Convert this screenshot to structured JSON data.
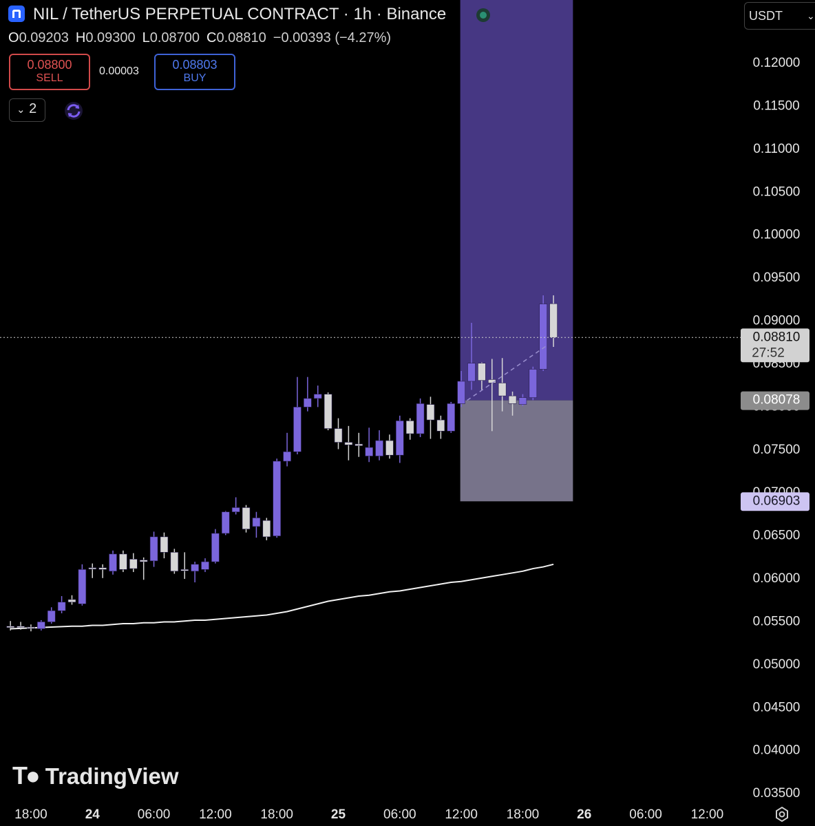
{
  "header": {
    "title": "NIL / TetherUS PERPETUAL CONTRACT · 1h · Binance",
    "ohlc": [
      {
        "k": "O",
        "v": "0.09203"
      },
      {
        "k": "H",
        "v": "0.09300"
      },
      {
        "k": "L",
        "v": "0.08700"
      },
      {
        "k": "C",
        "v": "0.08810"
      }
    ],
    "change": "−0.00393 (−4.27%)",
    "sell": {
      "price": "0.08800",
      "label": "SELL"
    },
    "spread": "0.00003",
    "buy": {
      "price": "0.08803",
      "label": "BUY"
    },
    "indicators": "2",
    "currency": "USDT",
    "watermark": "TradingView"
  },
  "chart_data": {
    "type": "candlestick",
    "up_color": "#7b66dc",
    "down_color": "#d6d6d6",
    "grid": false,
    "x": [
      -2,
      -1,
      0,
      1,
      2,
      3,
      4,
      5,
      6,
      7,
      8,
      9,
      10,
      11,
      12,
      13,
      14,
      15,
      16,
      17,
      18,
      19,
      20,
      21,
      22,
      23,
      24,
      25,
      26,
      27,
      28,
      29,
      30,
      31,
      32,
      33,
      34,
      35,
      36,
      37,
      38,
      39,
      40,
      41,
      42,
      43,
      44,
      45,
      46,
      47,
      48,
      49,
      50,
      51
    ],
    "open": [
      0.0545,
      0.0545,
      0.0544,
      0.0542,
      0.055,
      0.0563,
      0.0576,
      0.0571,
      0.0613,
      0.0613,
      0.0609,
      0.0629,
      0.0623,
      0.0622,
      0.0621,
      0.0649,
      0.0631,
      0.0611,
      0.0609,
      0.0611,
      0.062,
      0.0653,
      0.0678,
      0.0683,
      0.0661,
      0.0668,
      0.065,
      0.0737,
      0.0748,
      0.08,
      0.081,
      0.0815,
      0.0775,
      0.0759,
      0.0757,
      0.0743,
      0.0743,
      0.0761,
      0.0744,
      0.0784,
      0.0769,
      0.0803,
      0.0785,
      0.0772,
      0.0804,
      0.083,
      0.0851,
      0.0832,
      0.0828,
      0.0813,
      0.0803,
      0.0811,
      0.0844,
      0.09203
    ],
    "high": [
      0.0551,
      0.055,
      0.0547,
      0.0552,
      0.0567,
      0.058,
      0.0581,
      0.0617,
      0.0618,
      0.0617,
      0.0633,
      0.0633,
      0.063,
      0.0625,
      0.0655,
      0.0654,
      0.0635,
      0.0631,
      0.062,
      0.0624,
      0.0658,
      0.0679,
      0.0695,
      0.0686,
      0.0678,
      0.0671,
      0.074,
      0.077,
      0.0835,
      0.0835,
      0.0825,
      0.0817,
      0.0787,
      0.0778,
      0.077,
      0.0776,
      0.0773,
      0.0768,
      0.079,
      0.0787,
      0.081,
      0.0812,
      0.079,
      0.0806,
      0.0842,
      0.0898,
      0.0852,
      0.0856,
      0.0857,
      0.0818,
      0.0815,
      0.0847,
      0.093,
      0.093
    ],
    "low": [
      0.054,
      0.0541,
      0.0539,
      0.054,
      0.0548,
      0.056,
      0.057,
      0.0569,
      0.0601,
      0.0601,
      0.0605,
      0.0608,
      0.0608,
      0.0599,
      0.0614,
      0.0624,
      0.0606,
      0.06,
      0.0596,
      0.0608,
      0.0618,
      0.0651,
      0.0675,
      0.0654,
      0.0648,
      0.0645,
      0.0648,
      0.0731,
      0.0745,
      0.0795,
      0.08,
      0.0773,
      0.0751,
      0.0738,
      0.0742,
      0.0736,
      0.0738,
      0.074,
      0.0735,
      0.0762,
      0.0765,
      0.0763,
      0.0763,
      0.077,
      0.08,
      0.082,
      0.082,
      0.0772,
      0.0795,
      0.079,
      0.0801,
      0.0808,
      0.0842,
      0.087
    ],
    "close": [
      0.0544,
      0.0544,
      0.0543,
      0.055,
      0.0563,
      0.0573,
      0.0573,
      0.0611,
      0.0612,
      0.0611,
      0.0629,
      0.0611,
      0.0612,
      0.062,
      0.0649,
      0.0631,
      0.0609,
      0.061,
      0.0617,
      0.062,
      0.0653,
      0.0678,
      0.0683,
      0.0658,
      0.0671,
      0.0649,
      0.0737,
      0.0748,
      0.08,
      0.081,
      0.0815,
      0.0775,
      0.0759,
      0.0756,
      0.0755,
      0.0753,
      0.0761,
      0.0744,
      0.0784,
      0.0769,
      0.0804,
      0.0785,
      0.0772,
      0.0804,
      0.083,
      0.0851,
      0.0831,
      0.0828,
      0.0813,
      0.0804,
      0.0811,
      0.0844,
      0.092,
      0.0881
    ],
    "ma": {
      "color": "#f2f2f2",
      "values": [
        0.0542,
        0.05425,
        0.0543,
        0.05435,
        0.0544,
        0.05445,
        0.0545,
        0.0545,
        0.0546,
        0.0546,
        0.0547,
        0.0548,
        0.0548,
        0.0549,
        0.0549,
        0.055,
        0.055,
        0.0551,
        0.0552,
        0.0552,
        0.0553,
        0.0554,
        0.0555,
        0.0556,
        0.0557,
        0.0558,
        0.056,
        0.0562,
        0.0565,
        0.0568,
        0.0571,
        0.0574,
        0.0576,
        0.0578,
        0.058,
        0.0581,
        0.0583,
        0.0585,
        0.0586,
        0.0588,
        0.059,
        0.0592,
        0.0594,
        0.0596,
        0.0597,
        0.0599,
        0.0601,
        0.0603,
        0.0605,
        0.0607,
        0.0609,
        0.0612,
        0.0614,
        0.0617
      ]
    },
    "last_price": {
      "value": 0.0881,
      "label": "0.08810",
      "countdown": "27:52"
    },
    "position": {
      "xrange": [
        41.9,
        52.9
      ],
      "entry": {
        "value": 0.08078,
        "label": "0.08078"
      },
      "stop": {
        "value": 0.06903,
        "label": "0.06903"
      }
    },
    "xlim": [
      -3.02,
      69.2
    ],
    "ylim": [
      0.03405,
      0.12737
    ],
    "yticks": [
      {
        "value": 0.035,
        "label": "0.03500"
      },
      {
        "value": 0.04,
        "label": "0.04000"
      },
      {
        "value": 0.045,
        "label": "0.04500"
      },
      {
        "value": 0.05,
        "label": "0.05000"
      },
      {
        "value": 0.055,
        "label": "0.05500"
      },
      {
        "value": 0.06,
        "label": "0.06000"
      },
      {
        "value": 0.065,
        "label": "0.06500"
      },
      {
        "value": 0.07,
        "label": "0.07000"
      },
      {
        "value": 0.075,
        "label": "0.07500"
      },
      {
        "value": 0.08,
        "label": "0.08000"
      },
      {
        "value": 0.085,
        "label": "0.08500"
      },
      {
        "value": 0.09,
        "label": "0.09000"
      },
      {
        "value": 0.095,
        "label": "0.09500"
      },
      {
        "value": 0.1,
        "label": "0.10000"
      },
      {
        "value": 0.105,
        "label": "0.10500"
      },
      {
        "value": 0.11,
        "label": "0.11000"
      },
      {
        "value": 0.115,
        "label": "0.11500"
      },
      {
        "value": 0.12,
        "label": "0.12000"
      }
    ],
    "xticks": [
      {
        "value": 0,
        "label": "18:00"
      },
      {
        "value": 6,
        "label": "24"
      },
      {
        "value": 12,
        "label": "06:00"
      },
      {
        "value": 18,
        "label": "12:00"
      },
      {
        "value": 24,
        "label": "18:00"
      },
      {
        "value": 30,
        "label": "25"
      },
      {
        "value": 36,
        "label": "06:00"
      },
      {
        "value": 42,
        "label": "12:00"
      },
      {
        "value": 48,
        "label": "18:00"
      },
      {
        "value": 54,
        "label": "26"
      },
      {
        "value": 60,
        "label": "06:00"
      },
      {
        "value": 66,
        "label": "12:00"
      }
    ]
  }
}
